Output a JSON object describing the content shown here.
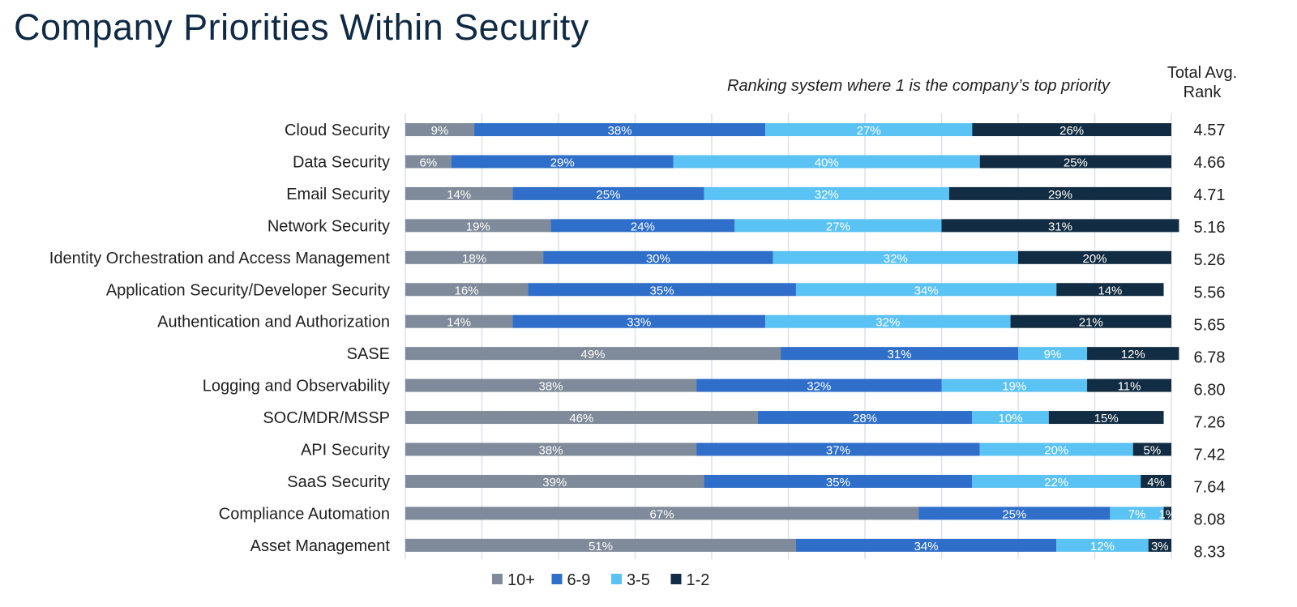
{
  "chart_data": {
    "type": "bar",
    "orientation": "horizontal",
    "stacked": true,
    "title": "Company Priorities Within Security",
    "subtitle": "Ranking system where 1 is the company’s top priority",
    "rank_header": [
      "Total Avg.",
      "Rank"
    ],
    "xlabel": "",
    "ylabel": "",
    "xlim": [
      0,
      100
    ],
    "grid": true,
    "legend_position": "bottom",
    "categories": [
      "Cloud Security",
      "Data Security",
      "Email Security",
      "Network Security",
      "Identity Orchestration and Access Management",
      "Application Security/Developer Security",
      "Authentication and Authorization",
      "SASE",
      "Logging and Observability",
      "SOC/MDR/MSSP",
      "API Security",
      "SaaS Security",
      "Compliance Automation",
      "Asset Management"
    ],
    "series": [
      {
        "name": "10+",
        "color": "#7f8b9a",
        "values": [
          9,
          6,
          14,
          19,
          18,
          16,
          14,
          49,
          38,
          46,
          38,
          39,
          67,
          51
        ]
      },
      {
        "name": "6-9",
        "color": "#2f6fca",
        "values": [
          38,
          29,
          25,
          24,
          30,
          35,
          33,
          31,
          32,
          28,
          37,
          35,
          25,
          34
        ]
      },
      {
        "name": "3-5",
        "color": "#5bc3f4",
        "values": [
          27,
          40,
          32,
          27,
          32,
          34,
          32,
          9,
          19,
          10,
          20,
          22,
          7,
          12
        ]
      },
      {
        "name": "1-2",
        "color": "#122d43",
        "values": [
          26,
          25,
          29,
          31,
          20,
          14,
          21,
          12,
          11,
          15,
          5,
          4,
          1,
          3
        ]
      }
    ],
    "avg_rank": [
      "4.57",
      "4.66",
      "4.71",
      "5.16",
      "5.26",
      "5.56",
      "5.65",
      "6.78",
      "6.80",
      "7.26",
      "7.42",
      "7.64",
      "8.08",
      "8.33"
    ]
  }
}
